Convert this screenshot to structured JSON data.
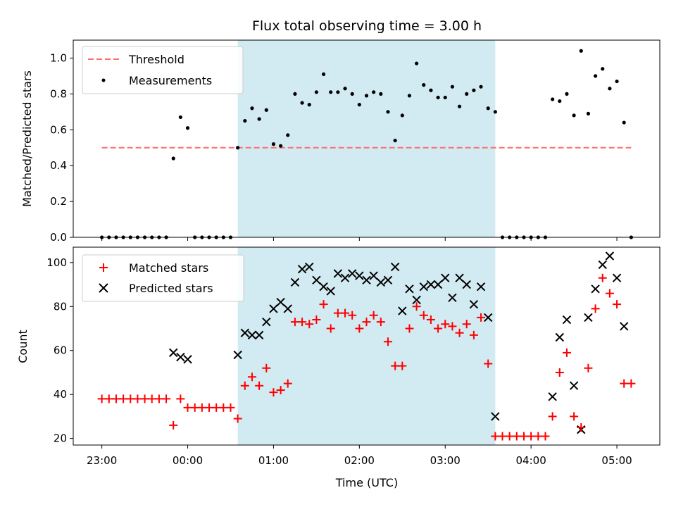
{
  "chart_data": [
    {
      "type": "scatter",
      "title": "Flux total observing time = 3.00 h",
      "xlabel": "",
      "ylabel": "Matched/Predicted stars",
      "ylim": [
        0,
        1.1
      ],
      "yticks": [
        "0.0",
        "0.2",
        "0.4",
        "0.6",
        "0.8",
        "1.0"
      ],
      "xlim": [
        "22:40",
        "05:30"
      ],
      "xticks_show_labels": false,
      "shaded_span": {
        "start": "00:35",
        "end": "03:35",
        "color": "#add8e6"
      },
      "threshold": {
        "name": "Threshold",
        "value": 0.5,
        "x_start": "23:00",
        "x_end": "05:10",
        "color": "#ff6f6f",
        "style": "dashed"
      },
      "series": [
        {
          "name": "Measurements",
          "color": "#000000",
          "marker": "dot",
          "points": [
            [
              "23:00",
              0
            ],
            [
              "23:05",
              0
            ],
            [
              "23:10",
              0
            ],
            [
              "23:15",
              0
            ],
            [
              "23:20",
              0
            ],
            [
              "23:25",
              0
            ],
            [
              "23:30",
              0
            ],
            [
              "23:35",
              0
            ],
            [
              "23:40",
              0
            ],
            [
              "23:45",
              0
            ],
            [
              "23:50",
              0.44
            ],
            [
              "23:55",
              0.67
            ],
            [
              "00:00",
              0.61
            ],
            [
              "00:05",
              0
            ],
            [
              "00:10",
              0
            ],
            [
              "00:15",
              0
            ],
            [
              "00:20",
              0
            ],
            [
              "00:25",
              0
            ],
            [
              "00:30",
              0
            ],
            [
              "00:35",
              0.5
            ],
            [
              "00:40",
              0.65
            ],
            [
              "00:45",
              0.72
            ],
            [
              "00:50",
              0.66
            ],
            [
              "00:55",
              0.71
            ],
            [
              "01:00",
              0.52
            ],
            [
              "01:05",
              0.51
            ],
            [
              "01:10",
              0.57
            ],
            [
              "01:15",
              0.8
            ],
            [
              "01:20",
              0.75
            ],
            [
              "01:25",
              0.74
            ],
            [
              "01:30",
              0.81
            ],
            [
              "01:35",
              0.91
            ],
            [
              "01:40",
              0.81
            ],
            [
              "01:45",
              0.81
            ],
            [
              "01:50",
              0.83
            ],
            [
              "01:55",
              0.8
            ],
            [
              "02:00",
              0.74
            ],
            [
              "02:05",
              0.79
            ],
            [
              "02:10",
              0.81
            ],
            [
              "02:15",
              0.8
            ],
            [
              "02:20",
              0.7
            ],
            [
              "02:25",
              0.54
            ],
            [
              "02:30",
              0.68
            ],
            [
              "02:35",
              0.79
            ],
            [
              "02:40",
              0.97
            ],
            [
              "02:45",
              0.85
            ],
            [
              "02:50",
              0.82
            ],
            [
              "02:55",
              0.78
            ],
            [
              "03:00",
              0.78
            ],
            [
              "03:05",
              0.84
            ],
            [
              "03:10",
              0.73
            ],
            [
              "03:15",
              0.8
            ],
            [
              "03:20",
              0.82
            ],
            [
              "03:25",
              0.84
            ],
            [
              "03:30",
              0.72
            ],
            [
              "03:35",
              0.7
            ],
            [
              "03:40",
              0
            ],
            [
              "03:45",
              0
            ],
            [
              "03:50",
              0
            ],
            [
              "03:55",
              0
            ],
            [
              "04:00",
              0
            ],
            [
              "04:05",
              0
            ],
            [
              "04:10",
              0
            ],
            [
              "04:15",
              0.77
            ],
            [
              "04:20",
              0.76
            ],
            [
              "04:25",
              0.8
            ],
            [
              "04:30",
              0.68
            ],
            [
              "04:35",
              1.04
            ],
            [
              "04:40",
              0.69
            ],
            [
              "04:45",
              0.9
            ],
            [
              "04:50",
              0.94
            ],
            [
              "04:55",
              0.83
            ],
            [
              "05:00",
              0.87
            ],
            [
              "05:05",
              0.64
            ],
            [
              "05:10",
              0
            ]
          ]
        }
      ],
      "legend": {
        "placement": "upper-left",
        "entries": [
          "Threshold",
          "Measurements"
        ]
      }
    },
    {
      "type": "scatter",
      "title": "",
      "xlabel": "Time (UTC)",
      "ylabel": "Count",
      "ylim": [
        17,
        107
      ],
      "yticks": [
        "20",
        "40",
        "60",
        "80",
        "100"
      ],
      "xlim": [
        "22:40",
        "05:30"
      ],
      "xticks": [
        "23:00",
        "00:00",
        "01:00",
        "02:00",
        "03:00",
        "04:00",
        "05:00"
      ],
      "shaded_span": {
        "start": "00:35",
        "end": "03:35",
        "color": "#add8e6"
      },
      "series": [
        {
          "name": "Matched stars",
          "color": "#ff0000",
          "marker": "plus",
          "points": [
            [
              "23:00",
              38
            ],
            [
              "23:05",
              38
            ],
            [
              "23:10",
              38
            ],
            [
              "23:15",
              38
            ],
            [
              "23:20",
              38
            ],
            [
              "23:25",
              38
            ],
            [
              "23:30",
              38
            ],
            [
              "23:35",
              38
            ],
            [
              "23:40",
              38
            ],
            [
              "23:45",
              38
            ],
            [
              "23:50",
              26
            ],
            [
              "23:55",
              38
            ],
            [
              "00:00",
              34
            ],
            [
              "00:05",
              34
            ],
            [
              "00:10",
              34
            ],
            [
              "00:15",
              34
            ],
            [
              "00:20",
              34
            ],
            [
              "00:25",
              34
            ],
            [
              "00:30",
              34
            ],
            [
              "00:35",
              29
            ],
            [
              "00:40",
              44
            ],
            [
              "00:45",
              48
            ],
            [
              "00:50",
              44
            ],
            [
              "00:55",
              52
            ],
            [
              "01:00",
              41
            ],
            [
              "01:05",
              42
            ],
            [
              "01:10",
              45
            ],
            [
              "01:15",
              73
            ],
            [
              "01:20",
              73
            ],
            [
              "01:25",
              72
            ],
            [
              "01:30",
              74
            ],
            [
              "01:35",
              81
            ],
            [
              "01:40",
              70
            ],
            [
              "01:45",
              77
            ],
            [
              "01:50",
              77
            ],
            [
              "01:55",
              76
            ],
            [
              "02:00",
              70
            ],
            [
              "02:05",
              73
            ],
            [
              "02:10",
              76
            ],
            [
              "02:15",
              73
            ],
            [
              "02:20",
              64
            ],
            [
              "02:25",
              53
            ],
            [
              "02:30",
              53
            ],
            [
              "02:35",
              70
            ],
            [
              "02:40",
              80
            ],
            [
              "02:45",
              76
            ],
            [
              "02:50",
              74
            ],
            [
              "02:55",
              70
            ],
            [
              "03:00",
              72
            ],
            [
              "03:05",
              71
            ],
            [
              "03:10",
              68
            ],
            [
              "03:15",
              72
            ],
            [
              "03:20",
              67
            ],
            [
              "03:25",
              75
            ],
            [
              "03:30",
              54
            ],
            [
              "03:35",
              21
            ],
            [
              "03:40",
              21
            ],
            [
              "03:45",
              21
            ],
            [
              "03:50",
              21
            ],
            [
              "03:55",
              21
            ],
            [
              "04:00",
              21
            ],
            [
              "04:05",
              21
            ],
            [
              "04:10",
              21
            ],
            [
              "04:15",
              30
            ],
            [
              "04:20",
              50
            ],
            [
              "04:25",
              59
            ],
            [
              "04:30",
              30
            ],
            [
              "04:35",
              25
            ],
            [
              "04:40",
              52
            ],
            [
              "04:45",
              79
            ],
            [
              "04:50",
              93
            ],
            [
              "04:55",
              86
            ],
            [
              "05:00",
              81
            ],
            [
              "05:05",
              45
            ],
            [
              "05:10",
              45
            ]
          ]
        },
        {
          "name": "Predicted stars",
          "color": "#000000",
          "marker": "x",
          "points": [
            [
              "23:50",
              59
            ],
            [
              "23:55",
              57
            ],
            [
              "00:00",
              56
            ],
            [
              "00:35",
              58
            ],
            [
              "00:40",
              68
            ],
            [
              "00:45",
              67
            ],
            [
              "00:50",
              67
            ],
            [
              "00:55",
              73
            ],
            [
              "01:00",
              79
            ],
            [
              "01:05",
              82
            ],
            [
              "01:10",
              79
            ],
            [
              "01:15",
              91
            ],
            [
              "01:20",
              97
            ],
            [
              "01:25",
              98
            ],
            [
              "01:30",
              92
            ],
            [
              "01:35",
              89
            ],
            [
              "01:40",
              87
            ],
            [
              "01:45",
              95
            ],
            [
              "01:50",
              93
            ],
            [
              "01:55",
              95
            ],
            [
              "02:00",
              94
            ],
            [
              "02:05",
              92
            ],
            [
              "02:10",
              94
            ],
            [
              "02:15",
              91
            ],
            [
              "02:20",
              92
            ],
            [
              "02:25",
              98
            ],
            [
              "02:30",
              78
            ],
            [
              "02:35",
              88
            ],
            [
              "02:40",
              83
            ],
            [
              "02:45",
              89
            ],
            [
              "02:50",
              90
            ],
            [
              "02:55",
              90
            ],
            [
              "03:00",
              93
            ],
            [
              "03:05",
              84
            ],
            [
              "03:10",
              93
            ],
            [
              "03:15",
              90
            ],
            [
              "03:20",
              81
            ],
            [
              "03:25",
              89
            ],
            [
              "03:30",
              75
            ],
            [
              "03:35",
              30
            ],
            [
              "04:15",
              39
            ],
            [
              "04:20",
              66
            ],
            [
              "04:25",
              74
            ],
            [
              "04:30",
              44
            ],
            [
              "04:35",
              24
            ],
            [
              "04:40",
              75
            ],
            [
              "04:45",
              88
            ],
            [
              "04:50",
              99
            ],
            [
              "04:55",
              103
            ],
            [
              "05:00",
              93
            ],
            [
              "05:05",
              71
            ]
          ]
        }
      ],
      "legend": {
        "placement": "upper-left",
        "entries": [
          "Matched stars",
          "Predicted stars"
        ]
      }
    }
  ]
}
